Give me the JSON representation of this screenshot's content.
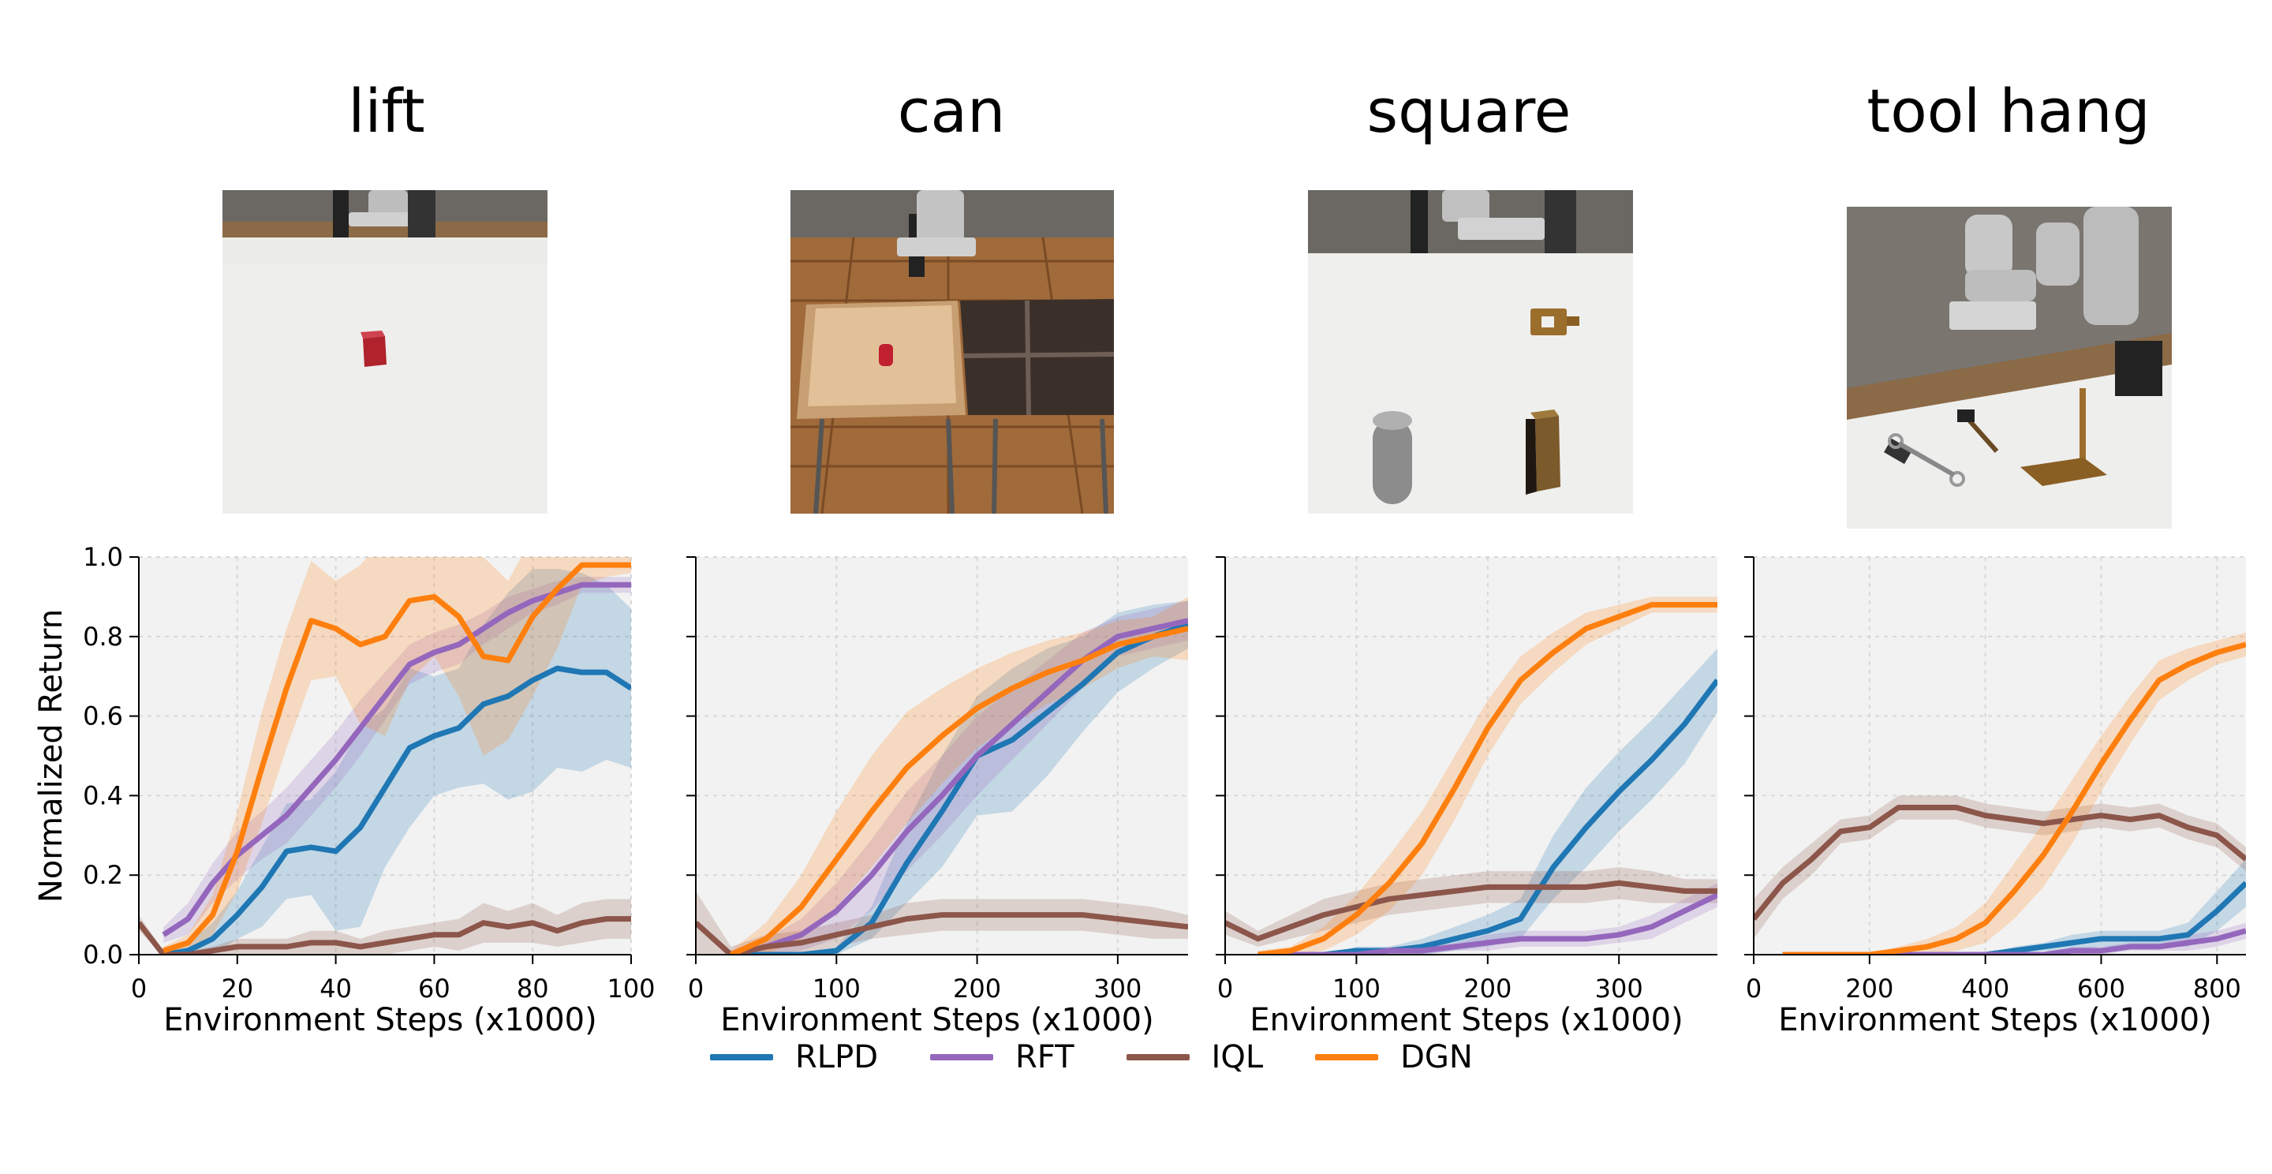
{
  "tasks": [
    "lift",
    "can",
    "square",
    "tool hang"
  ],
  "colors": {
    "RLPD": "#1f77b4",
    "RFT": "#9467bd",
    "IQL": "#8c564b",
    "DGN": "#ff7f0e"
  },
  "legend": [
    "RLPD",
    "RFT",
    "IQL",
    "DGN"
  ],
  "chart_data": [
    {
      "type": "line",
      "title": "lift",
      "xlabel": "Environment Steps (x1000)",
      "ylabel": "Normalized Return",
      "xlim": [
        0,
        100
      ],
      "ylim": [
        0,
        1.0
      ],
      "xticks": [
        0,
        20,
        40,
        60,
        80,
        100
      ],
      "yticks": [
        0.0,
        0.2,
        0.4,
        0.6,
        0.8,
        1.0
      ],
      "grid": true,
      "series": [
        {
          "name": "RLPD",
          "x": [
            5,
            10,
            15,
            20,
            25,
            30,
            35,
            40,
            45,
            50,
            55,
            60,
            65,
            70,
            75,
            80,
            85,
            90,
            95,
            100
          ],
          "y": [
            0.0,
            0.01,
            0.04,
            0.1,
            0.17,
            0.26,
            0.27,
            0.26,
            0.32,
            0.42,
            0.52,
            0.55,
            0.57,
            0.63,
            0.65,
            0.69,
            0.72,
            0.71,
            0.71,
            0.67
          ],
          "band": [
            0.01,
            0.02,
            0.04,
            0.06,
            0.1,
            0.12,
            0.12,
            0.2,
            0.25,
            0.2,
            0.2,
            0.15,
            0.15,
            0.2,
            0.26,
            0.28,
            0.25,
            0.25,
            0.22,
            0.2
          ]
        },
        {
          "name": "RFT",
          "x": [
            5,
            10,
            15,
            20,
            25,
            30,
            35,
            40,
            45,
            50,
            55,
            60,
            65,
            70,
            75,
            80,
            85,
            90,
            95,
            100
          ],
          "y": [
            0.05,
            0.09,
            0.18,
            0.25,
            0.3,
            0.35,
            0.42,
            0.49,
            0.57,
            0.65,
            0.73,
            0.76,
            0.78,
            0.82,
            0.86,
            0.89,
            0.91,
            0.93,
            0.93,
            0.93
          ],
          "band": [
            0.02,
            0.04,
            0.05,
            0.06,
            0.06,
            0.07,
            0.07,
            0.07,
            0.07,
            0.06,
            0.05,
            0.05,
            0.05,
            0.04,
            0.04,
            0.03,
            0.03,
            0.02,
            0.02,
            0.02
          ]
        },
        {
          "name": "IQL",
          "x": [
            0,
            5,
            10,
            15,
            20,
            25,
            30,
            35,
            40,
            45,
            50,
            55,
            60,
            65,
            70,
            75,
            80,
            85,
            90,
            95,
            100
          ],
          "y": [
            0.08,
            0.0,
            0.0,
            0.01,
            0.02,
            0.02,
            0.02,
            0.03,
            0.03,
            0.02,
            0.03,
            0.04,
            0.05,
            0.05,
            0.08,
            0.07,
            0.08,
            0.06,
            0.08,
            0.09,
            0.09
          ],
          "band": [
            0.02,
            0.01,
            0.01,
            0.01,
            0.02,
            0.02,
            0.02,
            0.03,
            0.03,
            0.02,
            0.03,
            0.03,
            0.03,
            0.04,
            0.05,
            0.04,
            0.05,
            0.04,
            0.05,
            0.05,
            0.05
          ]
        },
        {
          "name": "DGN",
          "x": [
            5,
            10,
            15,
            20,
            25,
            30,
            35,
            40,
            45,
            50,
            55,
            60,
            65,
            70,
            75,
            80,
            85,
            90,
            95,
            100
          ],
          "y": [
            0.01,
            0.03,
            0.1,
            0.26,
            0.47,
            0.67,
            0.84,
            0.82,
            0.78,
            0.8,
            0.89,
            0.9,
            0.85,
            0.75,
            0.74,
            0.85,
            0.92,
            0.98,
            0.98,
            0.98
          ],
          "band": [
            0.01,
            0.02,
            0.05,
            0.1,
            0.14,
            0.15,
            0.15,
            0.12,
            0.2,
            0.25,
            0.2,
            0.15,
            0.2,
            0.25,
            0.2,
            0.2,
            0.15,
            0.05,
            0.03,
            0.02
          ]
        }
      ]
    },
    {
      "type": "line",
      "title": "can",
      "xlabel": "Environment Steps (x1000)",
      "ylabel": "",
      "xlim": [
        0,
        350
      ],
      "ylim": [
        0,
        1.0
      ],
      "xticks": [
        0,
        100,
        200,
        300
      ],
      "yticks": [
        0.0,
        0.2,
        0.4,
        0.6,
        0.8,
        1.0
      ],
      "grid": true,
      "series": [
        {
          "name": "RLPD",
          "x": [
            25,
            50,
            75,
            100,
            125,
            150,
            175,
            200,
            225,
            250,
            275,
            300,
            325,
            350
          ],
          "y": [
            0.0,
            0.0,
            0.0,
            0.01,
            0.08,
            0.23,
            0.36,
            0.5,
            0.54,
            0.61,
            0.68,
            0.76,
            0.8,
            0.83
          ],
          "band": [
            0.0,
            0.0,
            0.0,
            0.01,
            0.04,
            0.1,
            0.14,
            0.15,
            0.18,
            0.16,
            0.12,
            0.1,
            0.08,
            0.06
          ]
        },
        {
          "name": "RFT",
          "x": [
            25,
            50,
            75,
            100,
            125,
            150,
            175,
            200,
            225,
            250,
            275,
            300,
            325,
            350
          ],
          "y": [
            0.0,
            0.02,
            0.05,
            0.11,
            0.2,
            0.31,
            0.4,
            0.5,
            0.58,
            0.66,
            0.74,
            0.8,
            0.82,
            0.84
          ],
          "band": [
            0.01,
            0.02,
            0.04,
            0.07,
            0.09,
            0.1,
            0.1,
            0.1,
            0.09,
            0.08,
            0.07,
            0.05,
            0.05,
            0.05
          ]
        },
        {
          "name": "IQL",
          "x": [
            0,
            25,
            50,
            75,
            100,
            125,
            150,
            175,
            200,
            225,
            250,
            275,
            300,
            325,
            350
          ],
          "y": [
            0.08,
            0.0,
            0.02,
            0.03,
            0.05,
            0.07,
            0.09,
            0.1,
            0.1,
            0.1,
            0.1,
            0.1,
            0.09,
            0.08,
            0.07
          ],
          "band": [
            0.08,
            0.02,
            0.03,
            0.03,
            0.03,
            0.03,
            0.04,
            0.04,
            0.04,
            0.04,
            0.04,
            0.04,
            0.04,
            0.04,
            0.03
          ]
        },
        {
          "name": "DGN",
          "x": [
            25,
            50,
            75,
            100,
            125,
            150,
            175,
            200,
            225,
            250,
            275,
            300,
            325,
            350
          ],
          "y": [
            0.0,
            0.04,
            0.12,
            0.24,
            0.36,
            0.47,
            0.55,
            0.62,
            0.67,
            0.71,
            0.74,
            0.78,
            0.8,
            0.82
          ],
          "band": [
            0.01,
            0.04,
            0.08,
            0.12,
            0.14,
            0.14,
            0.12,
            0.1,
            0.09,
            0.08,
            0.07,
            0.06,
            0.05,
            0.08
          ]
        }
      ]
    },
    {
      "type": "line",
      "title": "square",
      "xlabel": "Environment Steps (x1000)",
      "ylabel": "",
      "xlim": [
        0,
        375
      ],
      "ylim": [
        0,
        1.0
      ],
      "xticks": [
        0,
        100,
        200,
        300
      ],
      "yticks": [
        0.0,
        0.2,
        0.4,
        0.6,
        0.8,
        1.0
      ],
      "grid": true,
      "series": [
        {
          "name": "RLPD",
          "x": [
            25,
            50,
            75,
            100,
            125,
            150,
            175,
            200,
            225,
            250,
            275,
            300,
            325,
            350,
            375
          ],
          "y": [
            0.0,
            0.0,
            0.0,
            0.01,
            0.01,
            0.02,
            0.04,
            0.06,
            0.09,
            0.22,
            0.32,
            0.41,
            0.49,
            0.58,
            0.69
          ],
          "band": [
            0.0,
            0.0,
            0.0,
            0.01,
            0.01,
            0.02,
            0.03,
            0.04,
            0.05,
            0.08,
            0.1,
            0.1,
            0.1,
            0.1,
            0.08
          ]
        },
        {
          "name": "RFT",
          "x": [
            25,
            50,
            75,
            100,
            125,
            150,
            175,
            200,
            225,
            250,
            275,
            300,
            325,
            350,
            375
          ],
          "y": [
            0.0,
            0.0,
            0.0,
            0.0,
            0.01,
            0.01,
            0.02,
            0.03,
            0.04,
            0.04,
            0.04,
            0.05,
            0.07,
            0.11,
            0.15
          ],
          "band": [
            0.0,
            0.0,
            0.0,
            0.0,
            0.01,
            0.01,
            0.01,
            0.02,
            0.02,
            0.02,
            0.02,
            0.02,
            0.03,
            0.03,
            0.03
          ]
        },
        {
          "name": "IQL",
          "x": [
            0,
            25,
            50,
            75,
            100,
            125,
            150,
            175,
            200,
            225,
            250,
            275,
            300,
            325,
            350,
            375
          ],
          "y": [
            0.08,
            0.04,
            0.07,
            0.1,
            0.12,
            0.14,
            0.15,
            0.16,
            0.17,
            0.17,
            0.17,
            0.17,
            0.18,
            0.17,
            0.16,
            0.16
          ],
          "band": [
            0.03,
            0.02,
            0.03,
            0.04,
            0.04,
            0.04,
            0.04,
            0.04,
            0.04,
            0.04,
            0.04,
            0.04,
            0.04,
            0.04,
            0.03,
            0.03
          ]
        },
        {
          "name": "DGN",
          "x": [
            25,
            50,
            75,
            100,
            125,
            150,
            175,
            200,
            225,
            250,
            275,
            300,
            325,
            350,
            375
          ],
          "y": [
            0.0,
            0.01,
            0.04,
            0.1,
            0.18,
            0.28,
            0.42,
            0.57,
            0.69,
            0.76,
            0.82,
            0.85,
            0.88,
            0.88,
            0.88
          ],
          "band": [
            0.01,
            0.01,
            0.03,
            0.05,
            0.07,
            0.08,
            0.08,
            0.07,
            0.06,
            0.05,
            0.04,
            0.03,
            0.02,
            0.02,
            0.02
          ]
        }
      ]
    },
    {
      "type": "line",
      "title": "tool hang",
      "xlabel": "Environment Steps (x1000)",
      "ylabel": "",
      "xlim": [
        0,
        850
      ],
      "ylim": [
        0,
        1.0
      ],
      "xticks": [
        0,
        200,
        400,
        600,
        800
      ],
      "yticks": [
        0.0,
        0.2,
        0.4,
        0.6,
        0.8,
        1.0
      ],
      "grid": true,
      "series": [
        {
          "name": "RLPD",
          "x": [
            50,
            100,
            150,
            200,
            250,
            300,
            350,
            400,
            450,
            500,
            550,
            600,
            650,
            700,
            750,
            800,
            850
          ],
          "y": [
            0.0,
            0.0,
            0.0,
            0.0,
            0.0,
            0.0,
            0.0,
            0.0,
            0.01,
            0.02,
            0.03,
            0.04,
            0.04,
            0.04,
            0.05,
            0.11,
            0.18
          ],
          "band": [
            0.0,
            0.0,
            0.0,
            0.0,
            0.0,
            0.0,
            0.0,
            0.0,
            0.01,
            0.01,
            0.02,
            0.02,
            0.02,
            0.02,
            0.03,
            0.05,
            0.06
          ]
        },
        {
          "name": "RFT",
          "x": [
            50,
            100,
            150,
            200,
            250,
            300,
            350,
            400,
            450,
            500,
            550,
            600,
            650,
            700,
            750,
            800,
            850
          ],
          "y": [
            0.0,
            0.0,
            0.0,
            0.0,
            0.0,
            0.0,
            0.0,
            0.0,
            0.0,
            0.0,
            0.01,
            0.01,
            0.02,
            0.02,
            0.03,
            0.04,
            0.06
          ],
          "band": [
            0.0,
            0.0,
            0.0,
            0.0,
            0.0,
            0.0,
            0.0,
            0.0,
            0.0,
            0.0,
            0.01,
            0.01,
            0.01,
            0.01,
            0.02,
            0.02,
            0.02
          ]
        },
        {
          "name": "IQL",
          "x": [
            0,
            50,
            100,
            150,
            200,
            250,
            300,
            350,
            400,
            450,
            500,
            550,
            600,
            650,
            700,
            750,
            800,
            850
          ],
          "y": [
            0.09,
            0.18,
            0.24,
            0.31,
            0.32,
            0.37,
            0.37,
            0.37,
            0.35,
            0.34,
            0.33,
            0.34,
            0.35,
            0.34,
            0.35,
            0.32,
            0.3,
            0.24
          ],
          "band": [
            0.05,
            0.04,
            0.04,
            0.03,
            0.03,
            0.03,
            0.03,
            0.03,
            0.03,
            0.03,
            0.03,
            0.03,
            0.03,
            0.03,
            0.03,
            0.03,
            0.03,
            0.03
          ]
        },
        {
          "name": "DGN",
          "x": [
            50,
            100,
            150,
            200,
            250,
            300,
            350,
            400,
            450,
            500,
            550,
            600,
            650,
            700,
            750,
            800,
            850
          ],
          "y": [
            0.0,
            0.0,
            0.0,
            0.0,
            0.01,
            0.02,
            0.04,
            0.08,
            0.16,
            0.25,
            0.36,
            0.48,
            0.59,
            0.69,
            0.73,
            0.76,
            0.78
          ],
          "band": [
            0.0,
            0.0,
            0.0,
            0.0,
            0.01,
            0.02,
            0.03,
            0.05,
            0.07,
            0.08,
            0.08,
            0.07,
            0.06,
            0.05,
            0.04,
            0.03,
            0.03
          ]
        }
      ]
    }
  ]
}
